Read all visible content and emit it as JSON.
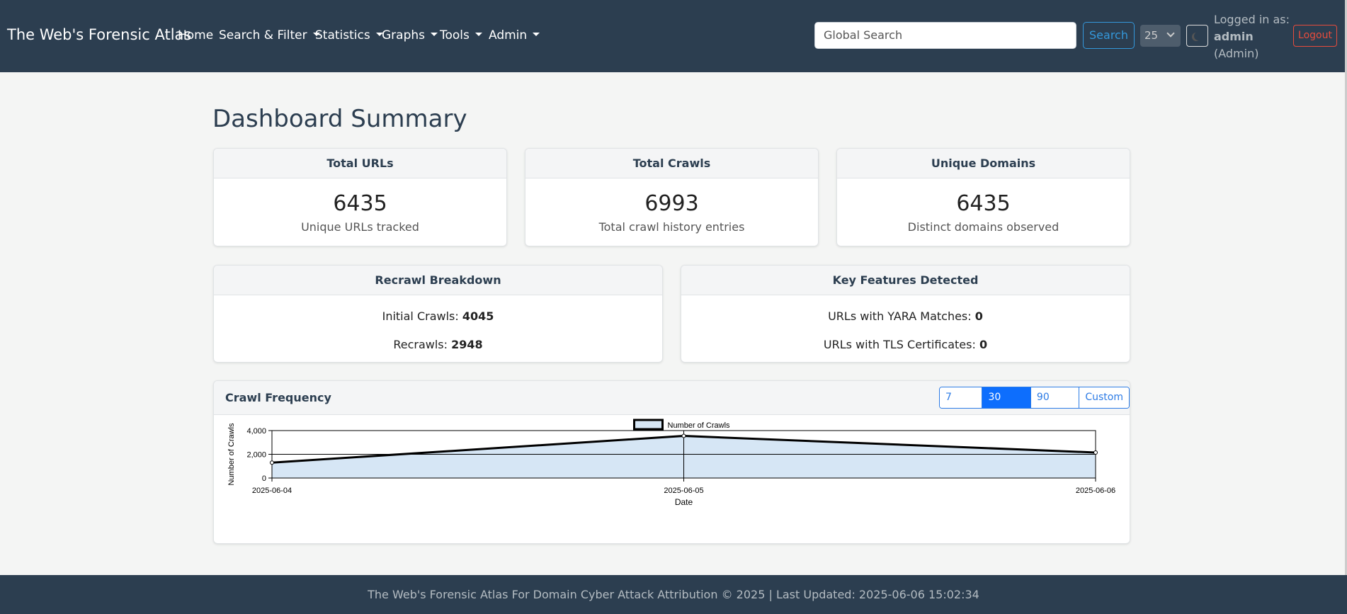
{
  "nav": {
    "brand": "The Web's Forensic Atlas",
    "items": [
      {
        "label": "Home",
        "dropdown": false
      },
      {
        "label": "Search & Filter",
        "dropdown": true
      },
      {
        "label": "Statistics",
        "dropdown": true
      },
      {
        "label": "Graphs",
        "dropdown": true
      },
      {
        "label": "Tools",
        "dropdown": true
      },
      {
        "label": "Admin",
        "dropdown": true
      }
    ],
    "search_placeholder": "Global Search",
    "search_button": "Search",
    "per_page_value": "25",
    "logged_in_label": "Logged in as:",
    "username": "admin",
    "role": "(Admin)",
    "logout": "Logout"
  },
  "page": {
    "title": "Dashboard Summary"
  },
  "stats": [
    {
      "title": "Total URLs",
      "value": "6435",
      "subtitle": "Unique URLs tracked"
    },
    {
      "title": "Total Crawls",
      "value": "6993",
      "subtitle": "Total crawl history entries"
    },
    {
      "title": "Unique Domains",
      "value": "6435",
      "subtitle": "Distinct domains observed"
    }
  ],
  "recrawl": {
    "title": "Recrawl Breakdown",
    "initial_label": "Initial Crawls:",
    "initial_value": "4045",
    "recrawl_label": "Recrawls:",
    "recrawl_value": "2948"
  },
  "features": {
    "title": "Key Features Detected",
    "yara_label": "URLs with YARA Matches:",
    "yara_value": "0",
    "tls_label": "URLs with TLS Certificates:",
    "tls_value": "0"
  },
  "crawl_frequency": {
    "title": "Crawl Frequency",
    "ranges": [
      "7 Days",
      "30 Days",
      "90 Days",
      "Custom"
    ],
    "active_range": "30 Days"
  },
  "chart_data": {
    "type": "area",
    "x": [
      "2025-06-04",
      "2025-06-05",
      "2025-06-06"
    ],
    "series": [
      {
        "name": "Number of Crawls",
        "values": [
          1300,
          3550,
          2150
        ]
      }
    ],
    "xlabel": "Date",
    "ylabel": "Number of Crawls",
    "ylim": [
      0,
      4000
    ],
    "yticks": [
      "0",
      "2,000",
      "4,000"
    ],
    "grid": true,
    "legend": "top-center",
    "colors": {
      "fill": "#d6e6f5",
      "line": "#000000"
    }
  },
  "footer": {
    "text": "The Web's Forensic Atlas For Domain Cyber Attack Attribution © 2025 | Last Updated: 2025-06-06 15:02:34"
  }
}
